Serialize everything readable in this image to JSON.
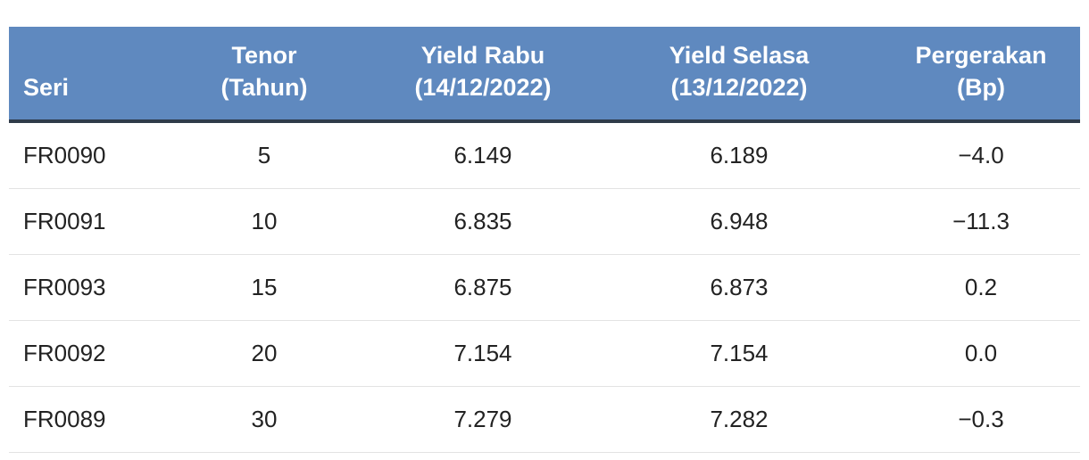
{
  "table": {
    "header": [
      [
        "Seri"
      ],
      [
        "Tenor",
        "(Tahun)"
      ],
      [
        "Yield Rabu",
        "(14/12/2022)"
      ],
      [
        "Yield Selasa",
        "(13/12/2022)"
      ],
      [
        "Pergerakan",
        "(Bp)"
      ]
    ],
    "rows": [
      [
        "FR0090",
        "5",
        "6.149",
        "6.189",
        "−4.0"
      ],
      [
        "FR0091",
        "10",
        "6.835",
        "6.948",
        "−11.3"
      ],
      [
        "FR0093",
        "15",
        "6.875",
        "6.873",
        "0.2"
      ],
      [
        "FR0092",
        "20",
        "7.154",
        "7.154",
        "0.0"
      ],
      [
        "FR0089",
        "30",
        "7.279",
        "7.282",
        "−0.3"
      ]
    ]
  }
}
